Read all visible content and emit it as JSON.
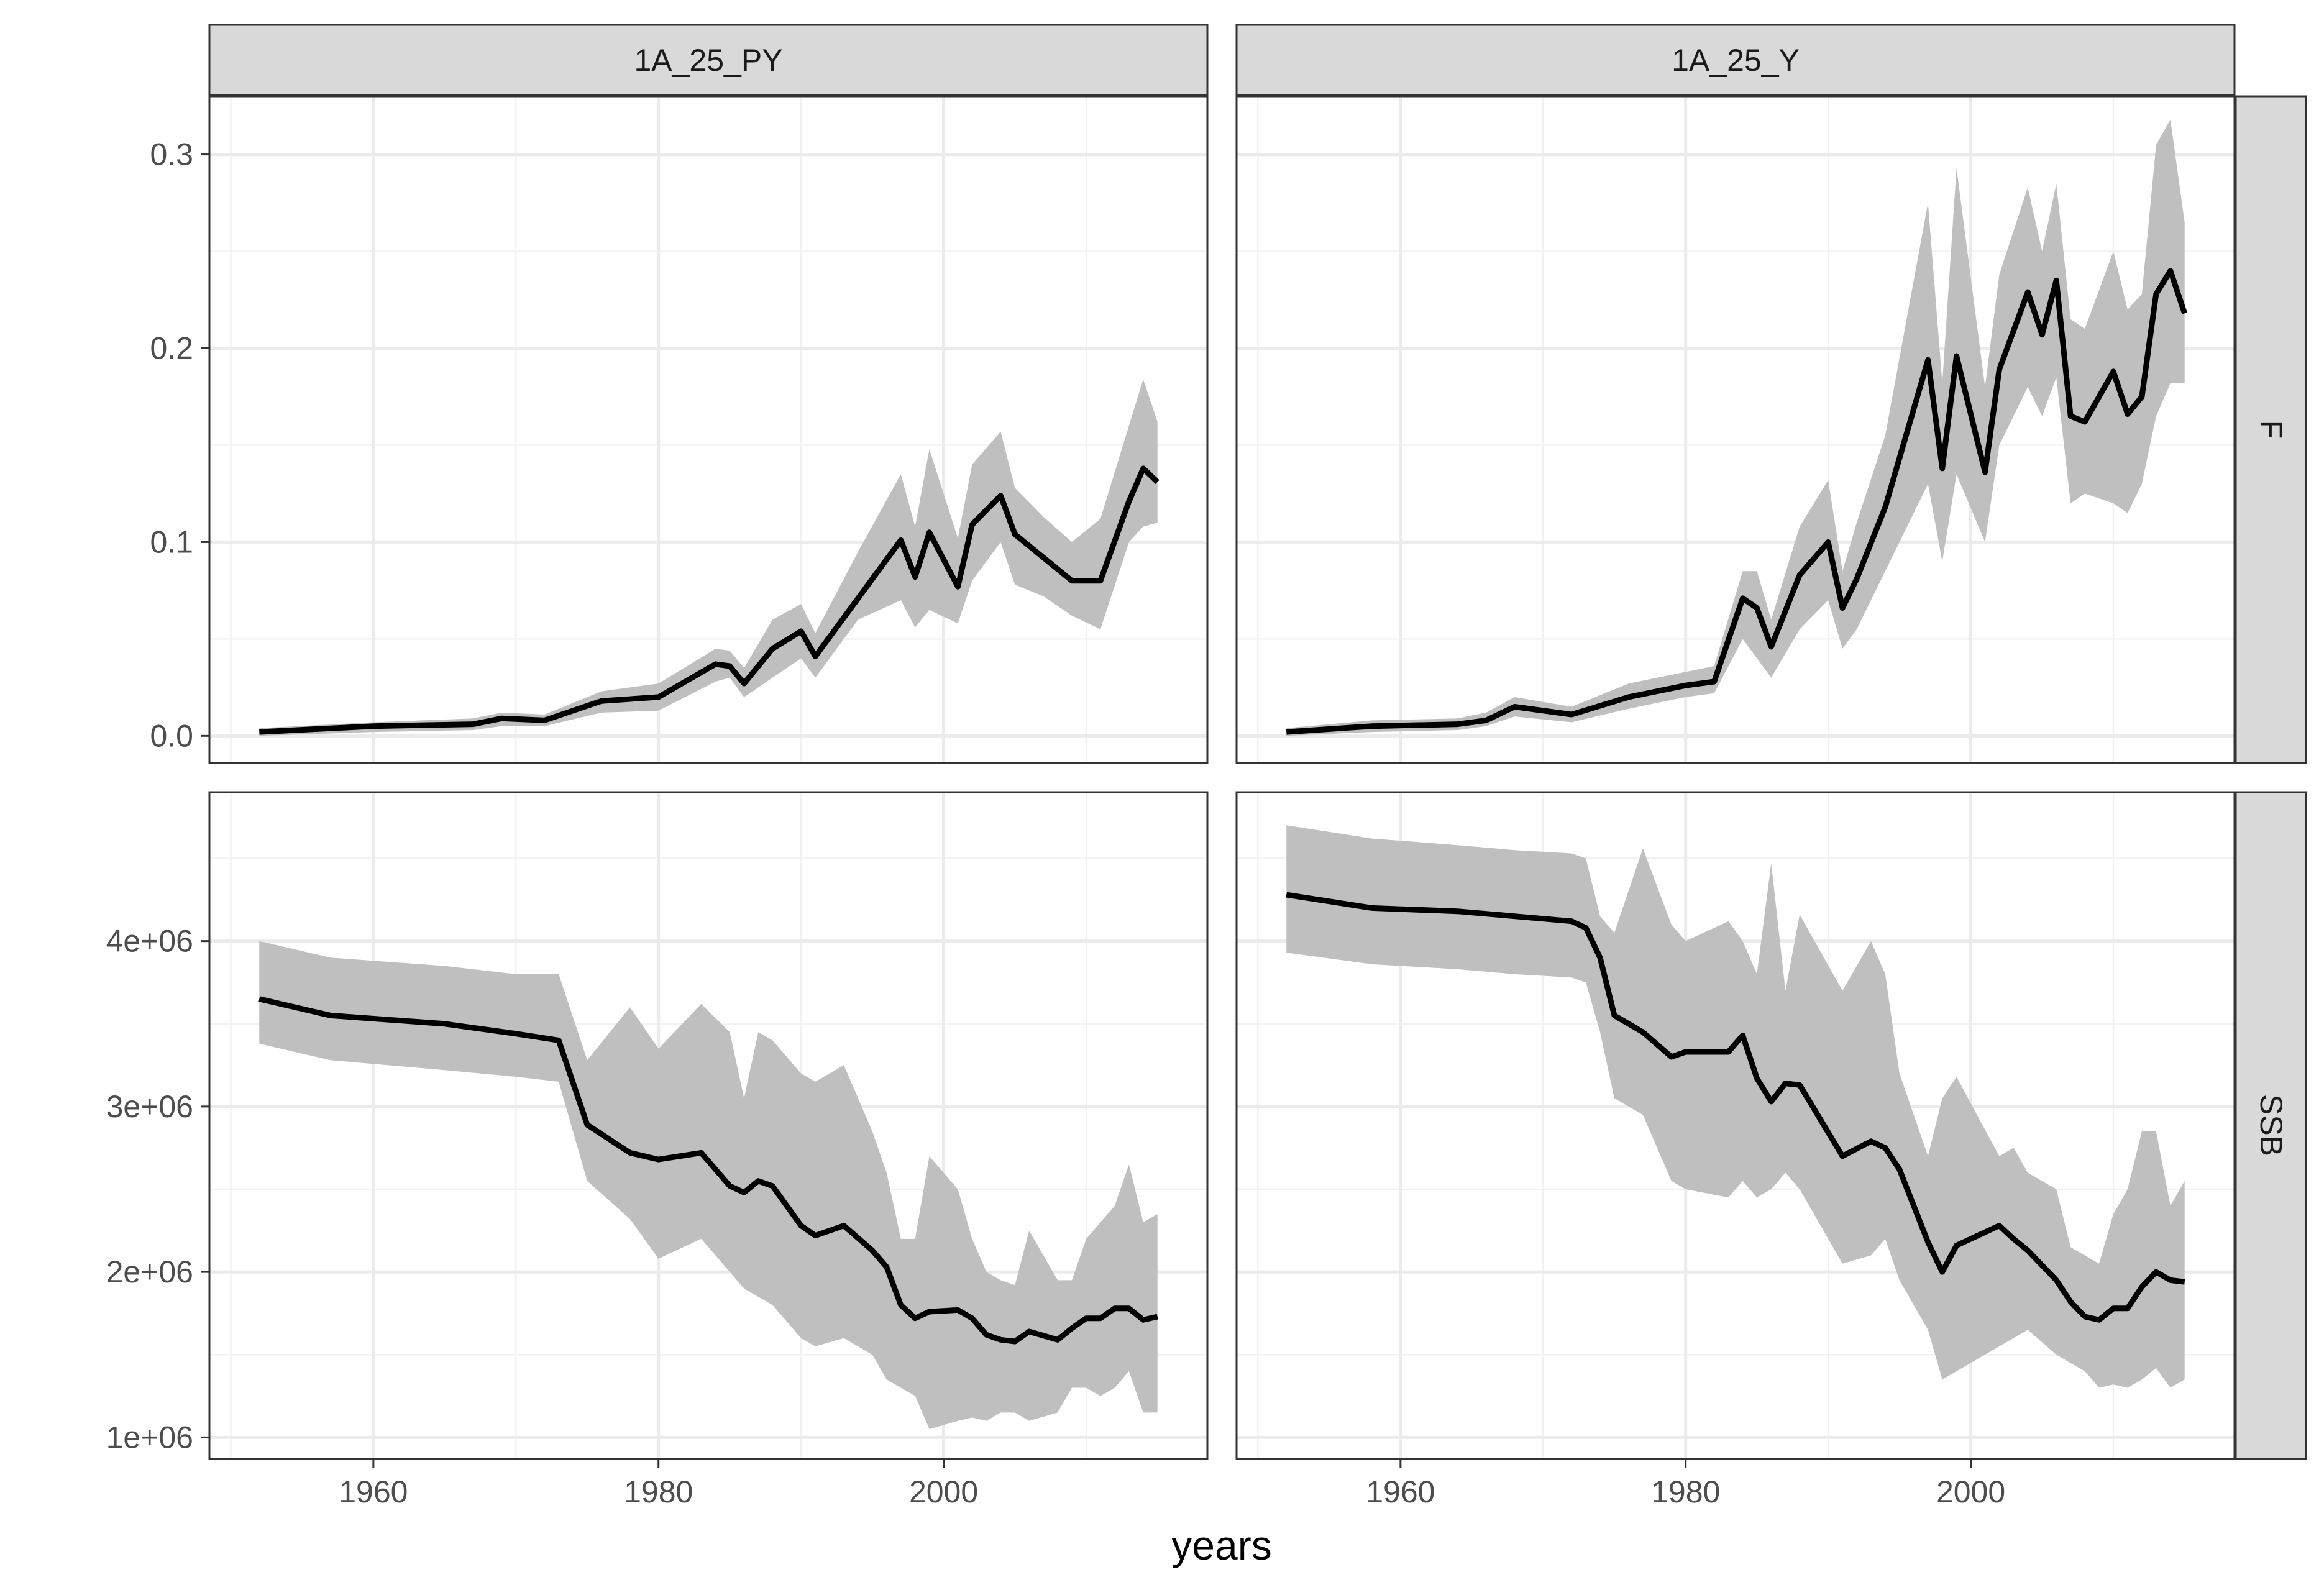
{
  "chart_data": {
    "type": "line",
    "layout": "facet-grid",
    "xlabel": "years",
    "ylabel": "",
    "title": "",
    "grid": true,
    "ribbon_color": "#bfbfbf",
    "line_color": "#000000",
    "strip_fill": "#d9d9d9",
    "columns": [
      "1A_25_PY",
      "1A_25_Y"
    ],
    "rows": [
      "F",
      "SSB"
    ],
    "x_ticks": [
      1960,
      1980,
      2000
    ],
    "x_tick_labels": [
      "1960",
      "1980",
      "2000"
    ],
    "xlim": [
      1948.5,
      2018.5
    ],
    "row_axes": [
      {
        "ylim": [
          -0.014,
          0.33
        ],
        "y_ticks": [
          0.0,
          0.1,
          0.2,
          0.3
        ],
        "y_tick_labels": [
          "0.0",
          "0.1",
          "0.2",
          "0.3"
        ]
      },
      {
        "ylim": [
          870000,
          4900000
        ],
        "y_ticks": [
          1000000,
          2000000,
          3000000,
          4000000
        ],
        "y_tick_labels": [
          "1e+06",
          "2e+06",
          "3e+06",
          "4e+06"
        ]
      }
    ],
    "panels": [
      {
        "column": "1A_25_PY",
        "row": "F",
        "x": [
          1952,
          1960,
          1967,
          1969,
          1972,
          1976,
          1980,
          1984,
          1985,
          1986,
          1988,
          1990,
          1991,
          1994,
          1997,
          1998,
          1999,
          2001,
          2002,
          2004,
          2005,
          2007,
          2009,
          2011,
          2013,
          2014,
          2015
        ],
        "y": [
          0.002,
          0.005,
          0.006,
          0.009,
          0.008,
          0.018,
          0.02,
          0.037,
          0.036,
          0.027,
          0.045,
          0.054,
          0.041,
          0.071,
          0.101,
          0.082,
          0.105,
          0.077,
          0.109,
          0.124,
          0.104,
          0.092,
          0.08,
          0.08,
          0.121,
          0.138,
          0.131
        ],
        "lower": [
          0.0,
          0.002,
          0.003,
          0.005,
          0.005,
          0.012,
          0.013,
          0.028,
          0.03,
          0.02,
          0.03,
          0.04,
          0.03,
          0.06,
          0.07,
          0.056,
          0.065,
          0.058,
          0.08,
          0.1,
          0.078,
          0.072,
          0.062,
          0.055,
          0.1,
          0.108,
          0.11
        ],
        "upper": [
          0.004,
          0.007,
          0.009,
          0.012,
          0.011,
          0.023,
          0.027,
          0.045,
          0.044,
          0.035,
          0.06,
          0.068,
          0.053,
          0.095,
          0.135,
          0.108,
          0.148,
          0.102,
          0.14,
          0.157,
          0.128,
          0.113,
          0.1,
          0.112,
          0.16,
          0.184,
          0.162
        ]
      },
      {
        "column": "1A_25_Y",
        "row": "F",
        "x": [
          1952,
          1958,
          1964,
          1966,
          1968,
          1972,
          1976,
          1980,
          1982,
          1984,
          1985,
          1986,
          1988,
          1990,
          1991,
          1992,
          1994,
          1997,
          1998,
          1999,
          2001,
          2002,
          2004,
          2005,
          2006,
          2007,
          2008,
          2010,
          2011,
          2012,
          2013,
          2014,
          2015
        ],
        "y": [
          0.002,
          0.005,
          0.006,
          0.008,
          0.015,
          0.011,
          0.02,
          0.026,
          0.028,
          0.071,
          0.066,
          0.046,
          0.083,
          0.1,
          0.066,
          0.081,
          0.118,
          0.194,
          0.138,
          0.196,
          0.136,
          0.189,
          0.229,
          0.207,
          0.235,
          0.165,
          0.162,
          0.188,
          0.166,
          0.175,
          0.228,
          0.24,
          0.218
        ],
        "lower": [
          0.0,
          0.002,
          0.003,
          0.005,
          0.01,
          0.007,
          0.014,
          0.02,
          0.022,
          0.05,
          0.04,
          0.03,
          0.055,
          0.07,
          0.045,
          0.055,
          0.085,
          0.13,
          0.09,
          0.135,
          0.1,
          0.15,
          0.18,
          0.165,
          0.185,
          0.12,
          0.125,
          0.12,
          0.115,
          0.13,
          0.165,
          0.182,
          0.182
        ],
        "upper": [
          0.004,
          0.008,
          0.009,
          0.012,
          0.02,
          0.015,
          0.027,
          0.033,
          0.036,
          0.085,
          0.085,
          0.06,
          0.108,
          0.132,
          0.085,
          0.11,
          0.155,
          0.275,
          0.182,
          0.293,
          0.18,
          0.238,
          0.283,
          0.25,
          0.285,
          0.215,
          0.21,
          0.25,
          0.22,
          0.228,
          0.305,
          0.318,
          0.265
        ]
      },
      {
        "column": "1A_25_PY",
        "row": "SSB",
        "x": [
          1952,
          1957,
          1965,
          1970,
          1973,
          1975,
          1978,
          1980,
          1983,
          1985,
          1986,
          1987,
          1988,
          1990,
          1991,
          1993,
          1995,
          1996,
          1997,
          1998,
          1999,
          2001,
          2002,
          2003,
          2004,
          2005,
          2006,
          2008,
          2009,
          2010,
          2011,
          2012,
          2013,
          2014,
          2015
        ],
        "y": [
          3650000,
          3550000,
          3500000,
          3440000,
          3400000,
          2890000,
          2720000,
          2680000,
          2720000,
          2520000,
          2480000,
          2550000,
          2520000,
          2280000,
          2220000,
          2280000,
          2130000,
          2030000,
          1800000,
          1720000,
          1760000,
          1770000,
          1720000,
          1620000,
          1590000,
          1580000,
          1640000,
          1590000,
          1660000,
          1720000,
          1720000,
          1780000,
          1780000,
          1710000,
          1730000
        ],
        "lower": [
          3380000,
          3280000,
          3220000,
          3180000,
          3150000,
          2550000,
          2320000,
          2080000,
          2200000,
          2000000,
          1900000,
          1850000,
          1800000,
          1600000,
          1550000,
          1600000,
          1500000,
          1350000,
          1300000,
          1250000,
          1050000,
          1100000,
          1120000,
          1100000,
          1150000,
          1150000,
          1100000,
          1150000,
          1300000,
          1300000,
          1250000,
          1300000,
          1400000,
          1150000,
          1150000
        ],
        "upper": [
          4000000,
          3900000,
          3850000,
          3800000,
          3800000,
          3280000,
          3600000,
          3350000,
          3620000,
          3450000,
          3050000,
          3450000,
          3400000,
          3200000,
          3150000,
          3250000,
          2850000,
          2600000,
          2200000,
          2200000,
          2700000,
          2500000,
          2200000,
          2000000,
          1950000,
          1920000,
          2250000,
          1950000,
          1950000,
          2200000,
          2300000,
          2400000,
          2650000,
          2300000,
          2350000
        ]
      },
      {
        "column": "1A_25_Y",
        "row": "SSB",
        "x": [
          1952,
          1958,
          1964,
          1968,
          1972,
          1973,
          1974,
          1975,
          1977,
          1979,
          1980,
          1983,
          1984,
          1985,
          1986,
          1987,
          1988,
          1991,
          1993,
          1994,
          1995,
          1997,
          1998,
          1999,
          2002,
          2003,
          2004,
          2006,
          2007,
          2008,
          2009,
          2010,
          2011,
          2012,
          2013,
          2014,
          2015
        ],
        "y": [
          4280000,
          4200000,
          4180000,
          4150000,
          4120000,
          4080000,
          3900000,
          3550000,
          3450000,
          3300000,
          3330000,
          3330000,
          3430000,
          3170000,
          3030000,
          3140000,
          3130000,
          2700000,
          2790000,
          2750000,
          2620000,
          2180000,
          2000000,
          2160000,
          2280000,
          2200000,
          2130000,
          1950000,
          1820000,
          1730000,
          1710000,
          1780000,
          1780000,
          1910000,
          2000000,
          1950000,
          1940000
        ],
        "lower": [
          3930000,
          3860000,
          3830000,
          3800000,
          3780000,
          3750000,
          3450000,
          3050000,
          2950000,
          2550000,
          2500000,
          2450000,
          2550000,
          2450000,
          2500000,
          2600000,
          2500000,
          2050000,
          2100000,
          2200000,
          1950000,
          1650000,
          1350000,
          1400000,
          1550000,
          1600000,
          1650000,
          1500000,
          1450000,
          1400000,
          1300000,
          1320000,
          1300000,
          1350000,
          1420000,
          1300000,
          1350000
        ],
        "upper": [
          4700000,
          4620000,
          4580000,
          4550000,
          4530000,
          4500000,
          4150000,
          4050000,
          4560000,
          4100000,
          4000000,
          4120000,
          4000000,
          3800000,
          4470000,
          3700000,
          4160000,
          3700000,
          4000000,
          3800000,
          3200000,
          2700000,
          3050000,
          3180000,
          2700000,
          2750000,
          2600000,
          2500000,
          2150000,
          2100000,
          2050000,
          2350000,
          2500000,
          2850000,
          2850000,
          2400000,
          2550000
        ]
      }
    ]
  }
}
